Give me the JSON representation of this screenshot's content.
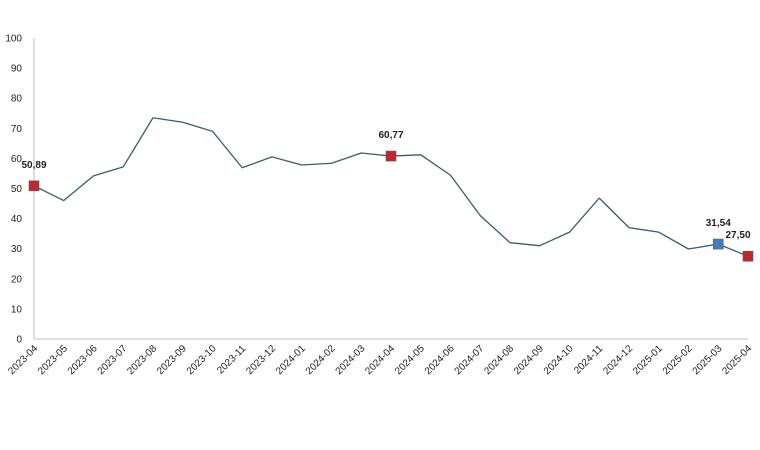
{
  "chart_data": {
    "type": "line",
    "title": "",
    "xlabel": "",
    "ylabel": "",
    "ylim": [
      0,
      100
    ],
    "yticks": [
      0,
      10,
      20,
      30,
      40,
      50,
      60,
      70,
      80,
      90,
      100
    ],
    "grid": false,
    "legend": "none",
    "categories": [
      "2023-04",
      "2023-05",
      "2023-06",
      "2023-07",
      "2023-08",
      "2023-09",
      "2023-10",
      "2023-11",
      "2023-12",
      "2024-01",
      "2024-02",
      "2024-03",
      "2024-04",
      "2024-05",
      "2024-06",
      "2024-07",
      "2024-08",
      "2024-09",
      "2024-10",
      "2024-11",
      "2024-12",
      "2025-01",
      "2025-02",
      "2025-03",
      "2025-04"
    ],
    "series": [
      {
        "color": "#3b5a70",
        "values": [
          50.89,
          46.0,
          54.2,
          57.2,
          73.5,
          72.0,
          69.0,
          56.9,
          60.5,
          57.8,
          58.4,
          61.8,
          60.77,
          61.2,
          54.4,
          41.0,
          32.0,
          31.0,
          35.5,
          46.8,
          37.0,
          35.5,
          29.9,
          31.54,
          27.5
        ]
      }
    ],
    "highlights": [
      {
        "category": "2023-04",
        "value": 50.89,
        "label": "50,89",
        "color": "#c0262d"
      },
      {
        "category": "2024-04",
        "value": 60.77,
        "label": "60,77",
        "color": "#c0262d"
      },
      {
        "category": "2025-03",
        "value": 31.54,
        "label": "31,54",
        "color": "#3f7fbf"
      },
      {
        "category": "2025-04",
        "value": 27.5,
        "label": "27,50",
        "color": "#c0262d"
      }
    ]
  }
}
